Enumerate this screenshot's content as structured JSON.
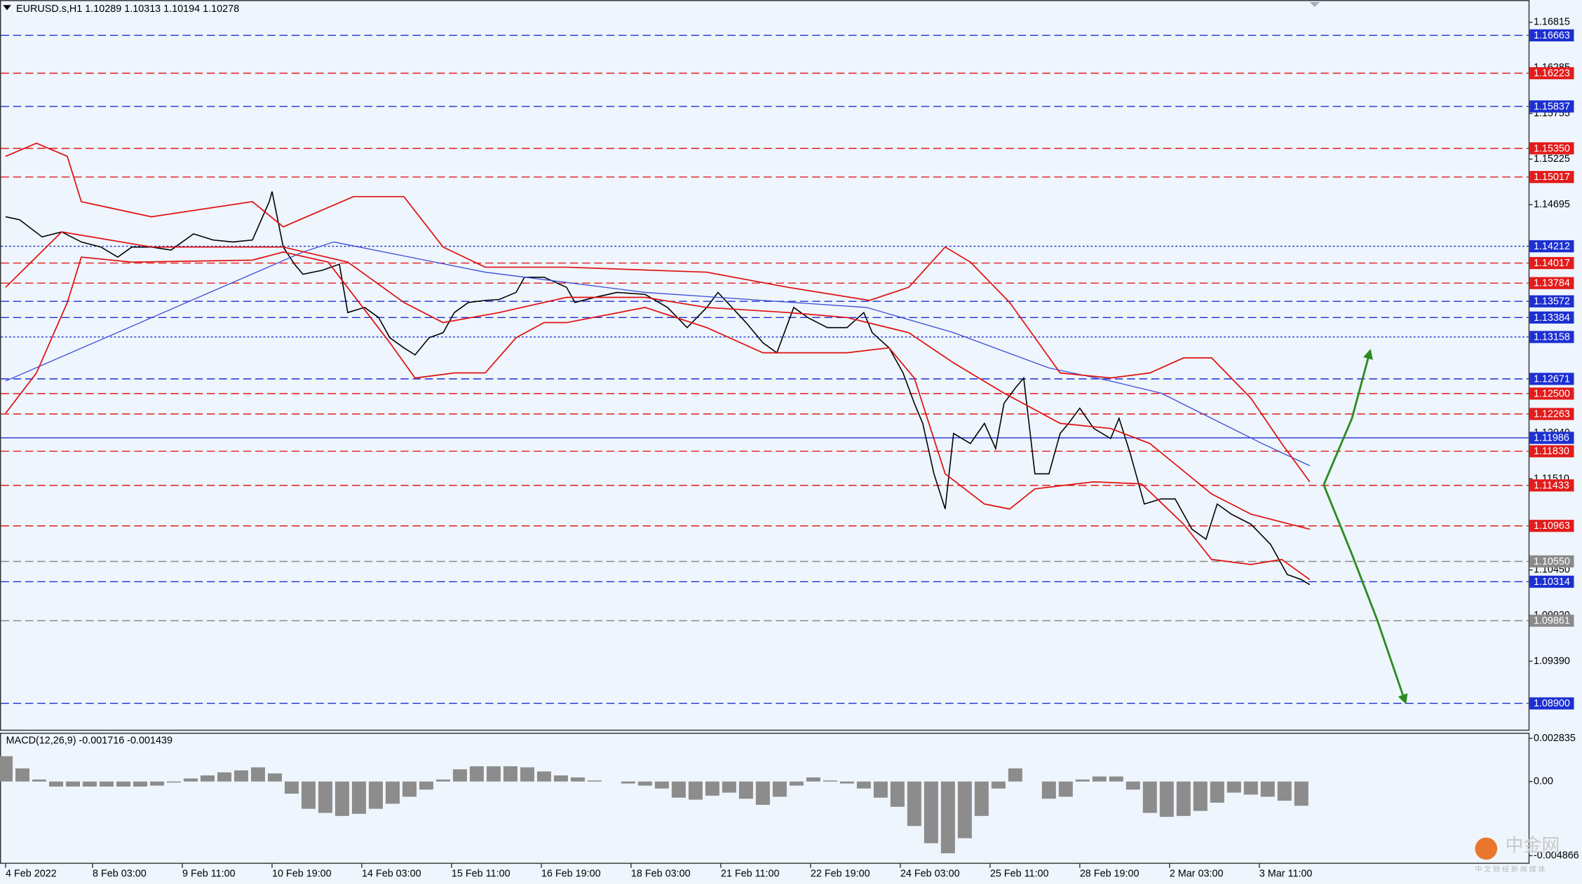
{
  "chart_data": [
    {
      "type": "line",
      "title": "EURUSD.s,H1  1.10289 1.10313 1.10194 1.10278",
      "xlim": [
        -2,
        543
      ],
      "ylim": [
        1.08594,
        1.17073
      ],
      "xticks": [
        {
          "value": 0,
          "label": "4 Feb 2022"
        },
        {
          "value": 31,
          "label": "8 Feb 03:00"
        },
        {
          "value": 63,
          "label": "9 Feb 11:00"
        },
        {
          "value": 95,
          "label": "10 Feb 19:00"
        },
        {
          "value": 127,
          "label": "14 Feb 03:00"
        },
        {
          "value": 159,
          "label": "15 Feb 11:00"
        },
        {
          "value": 191,
          "label": "16 Feb 19:00"
        },
        {
          "value": 223,
          "label": "18 Feb 03:00"
        },
        {
          "value": 255,
          "label": "21 Feb 11:00"
        },
        {
          "value": 287,
          "label": "22 Feb 19:00"
        },
        {
          "value": 319,
          "label": "24 Feb 03:00"
        },
        {
          "value": 351,
          "label": "25 Feb 11:00"
        },
        {
          "value": 383,
          "label": "28 Feb 19:00"
        },
        {
          "value": 415,
          "label": "2 Mar 03:00"
        },
        {
          "value": 447,
          "label": "3 Mar 11:00"
        }
      ],
      "yticks": [
        1.16815,
        1.16285,
        1.15755,
        1.15225,
        1.14695,
        {
          "value": 1.1204,
          "label": "1.12040"
        },
        {
          "value": 1.1151,
          "label": "1.11510"
        },
        {
          "value": 1.1045,
          "label": "1.10450"
        },
        {
          "value": 1.0992,
          "label": "1.09920"
        },
        {
          "value": 1.0939,
          "label": "1.09390"
        }
      ],
      "series": [
        {
          "color": "#000000",
          "width": 1.1,
          "x": [
            0,
            5,
            13,
            20,
            27,
            34,
            40,
            45,
            52,
            59,
            67,
            74,
            81,
            88,
            94,
            95,
            99,
            103,
            106,
            113,
            119,
            122,
            128,
            133,
            137,
            142,
            146,
            151,
            156,
            160,
            165,
            171,
            176,
            182,
            185,
            192,
            200,
            203,
            210,
            218,
            228,
            236,
            243,
            250,
            254,
            259,
            264,
            270,
            275,
            281,
            286,
            293,
            300,
            306,
            309,
            315,
            320,
            324,
            327,
            331,
            335,
            338,
            344,
            349,
            353,
            356,
            360,
            363,
            367,
            372,
            376,
            379,
            383,
            388,
            394,
            397,
            401,
            406,
            412,
            417,
            423,
            428,
            432,
            437,
            444,
            451,
            457,
            462,
            465
          ],
          "values": [
            1.14555,
            1.1452,
            1.14321,
            1.14379,
            1.14262,
            1.14203,
            1.14086,
            1.14203,
            1.14203,
            1.14168,
            1.14356,
            1.14285,
            1.14262,
            1.14285,
            1.1473,
            1.14848,
            1.14203,
            1.14004,
            1.13887,
            1.13934,
            1.14004,
            1.13442,
            1.13501,
            1.13384,
            1.13149,
            1.13032,
            1.1295,
            1.13149,
            1.13208,
            1.13442,
            1.13559,
            1.13583,
            1.13594,
            1.13676,
            1.13852,
            1.13852,
            1.13735,
            1.13559,
            1.13618,
            1.13676,
            1.13653,
            1.13501,
            1.13267,
            1.13501,
            1.13676,
            1.13501,
            1.13325,
            1.13091,
            1.12974,
            1.13501,
            1.13384,
            1.13267,
            1.13267,
            1.13442,
            1.13208,
            1.13032,
            1.1274,
            1.12388,
            1.12154,
            1.11568,
            1.11159,
            1.12037,
            1.1192,
            1.12154,
            1.11861,
            1.12388,
            1.12564,
            1.12681,
            1.11568,
            1.11568,
            1.12037,
            1.12154,
            1.1233,
            1.12095,
            1.11978,
            1.12213,
            1.11803,
            1.11217,
            1.11276,
            1.11276,
            1.10924,
            1.10807,
            1.11217,
            1.111,
            1.10983,
            1.10749,
            1.10397,
            1.10339,
            1.1028
          ]
        },
        {
          "color": "#3a4bd8",
          "width": 0.9,
          "x": [
            0,
            106,
            117,
            171,
            228,
            307,
            338,
            372,
            394,
            412,
            448,
            465
          ],
          "values": [
            1.12646,
            1.14145,
            1.14262,
            1.13911,
            1.13676,
            1.13501,
            1.13208,
            1.12798,
            1.12646,
            1.12505,
            1.1192,
            1.11662
          ]
        },
        {
          "color": "#e01010",
          "width": 1.2,
          "x": [
            0,
            11,
            22,
            27,
            52,
            88,
            99,
            124,
            142,
            156,
            171,
            200,
            250,
            279,
            308,
            322,
            335,
            344,
            358,
            376,
            394,
            408,
            420,
            430,
            444,
            455,
            465
          ],
          "values": [
            1.15257,
            1.1541,
            1.15257,
            1.1473,
            1.14555,
            1.1473,
            1.14438,
            1.14789,
            1.14789,
            1.14203,
            1.13969,
            1.13969,
            1.13911,
            1.13735,
            1.13583,
            1.13735,
            1.14203,
            1.14028,
            1.13559,
            1.1274,
            1.12681,
            1.1274,
            1.12915,
            1.12915,
            1.12447,
            1.1192,
            1.11475
          ]
        },
        {
          "color": "#e01010",
          "width": 1.2,
          "x": [
            0,
            20,
            52,
            99,
            122,
            142,
            156,
            176,
            200,
            228,
            250,
            279,
            300,
            322,
            338,
            356,
            376,
            394,
            408,
            430,
            444,
            465
          ],
          "values": [
            1.13735,
            1.14379,
            1.14203,
            1.14203,
            1.14028,
            1.13559,
            1.13325,
            1.13442,
            1.13618,
            1.13618,
            1.13501,
            1.13442,
            1.13384,
            1.13208,
            1.12857,
            1.12505,
            1.12154,
            1.12095,
            1.1192,
            1.11334,
            1.111,
            1.10924
          ]
        },
        {
          "color": "#e01010",
          "width": 1.2,
          "x": [
            0,
            11,
            22,
            27,
            45,
            88,
            99,
            115,
            137,
            146,
            160,
            171,
            182,
            192,
            200,
            228,
            250,
            270,
            300,
            315,
            324,
            335,
            349,
            358,
            367,
            388,
            405,
            420,
            430,
            444,
            455,
            465
          ],
          "values": [
            1.12271,
            1.1274,
            1.13559,
            1.14086,
            1.14028,
            1.14051,
            1.14145,
            1.14028,
            1.13091,
            1.12681,
            1.1274,
            1.1274,
            1.13149,
            1.13325,
            1.13325,
            1.13501,
            1.13267,
            1.12974,
            1.12974,
            1.13032,
            1.12681,
            1.11568,
            1.11217,
            1.11159,
            1.11393,
            1.11475,
            1.11451,
            1.10983,
            1.10573,
            1.10514,
            1.10573,
            1.10339
          ]
        }
      ],
      "levels": [
        {
          "value": 1.16663,
          "color": "#1c2fd1",
          "style": "dashed"
        },
        {
          "value": 1.16223,
          "color": "#e21b1b",
          "style": "dashed"
        },
        {
          "value": 1.15837,
          "color": "#1c2fd1",
          "style": "dashed"
        },
        {
          "value": 1.1535,
          "label": "1.15350",
          "color": "#e21b1b",
          "style": "dashed"
        },
        {
          "value": 1.15017,
          "color": "#e21b1b",
          "style": "dashed"
        },
        {
          "value": 1.14212,
          "color": "#1c2fd1",
          "style": "dotted"
        },
        {
          "value": 1.14017,
          "color": "#e21b1b",
          "style": "dashed"
        },
        {
          "value": 1.13784,
          "color": "#e21b1b",
          "style": "dashed"
        },
        {
          "value": 1.13572,
          "color": "#1c2fd1",
          "style": "dashed"
        },
        {
          "value": 1.13384,
          "color": "#1c2fd1",
          "style": "dashed"
        },
        {
          "value": 1.13158,
          "color": "#1c2fd1",
          "style": "dotted"
        },
        {
          "value": 1.12671,
          "color": "#1c2fd1",
          "style": "dashed"
        },
        {
          "value": 1.125,
          "label": "1.12500",
          "color": "#e21b1b",
          "style": "dashed"
        },
        {
          "value": 1.12263,
          "color": "#e21b1b",
          "style": "dashed"
        },
        {
          "value": 1.11986,
          "color": "#1c2fd1",
          "style": "solid"
        },
        {
          "value": 1.1183,
          "label": "1.11830",
          "color": "#e21b1b",
          "style": "dashed"
        },
        {
          "value": 1.11433,
          "color": "#e21b1b",
          "style": "dashed"
        },
        {
          "value": 1.10963,
          "color": "#e21b1b",
          "style": "dashed"
        },
        {
          "value": 1.1055,
          "label": "1.10550",
          "color": "#8a8a8a",
          "style": "dashed"
        },
        {
          "value": 1.10314,
          "color": "#1c2fd1",
          "style": "dashed"
        },
        {
          "value": 1.09861,
          "color": "#8a8a8a",
          "style": "dashed"
        },
        {
          "value": 1.089,
          "label": "1.08900",
          "color": "#1c2fd1",
          "style": "dashed"
        }
      ]
    },
    {
      "type": "bar",
      "title": "MACD(12,26,9) -0.001716 -0.001439",
      "color": "#8c8c8c",
      "ylim": [
        -0.0054,
        0.0032
      ],
      "yticks": [
        0.002835,
        {
          "value": 0,
          "label": "0.00"
        },
        -0.004866
      ],
      "x": [
        0,
        6,
        12,
        18,
        24,
        30,
        36,
        42,
        48,
        54,
        60,
        66,
        72,
        78,
        84,
        90,
        96,
        102,
        108,
        114,
        120,
        126,
        132,
        138,
        144,
        150,
        156,
        162,
        168,
        174,
        180,
        186,
        192,
        198,
        204,
        210,
        216,
        222,
        228,
        234,
        240,
        246,
        252,
        258,
        264,
        270,
        276,
        282,
        288,
        294,
        300,
        306,
        312,
        318,
        324,
        330,
        336,
        342,
        348,
        354,
        360,
        366,
        372,
        378,
        384,
        390,
        396,
        402,
        408,
        414,
        420,
        426,
        432,
        438,
        444,
        450,
        456,
        462
      ],
      "values": [
        0.00166,
        0.00086,
        0.00013,
        -0.00033,
        -0.00033,
        -0.00033,
        -0.00033,
        -0.00033,
        -0.00033,
        -0.00027,
        -7e-05,
        0.0002,
        0.0004,
        0.0006,
        0.00073,
        0.00093,
        0.00053,
        -0.0008,
        -0.00179,
        -0.00206,
        -0.00226,
        -0.00212,
        -0.00179,
        -0.00146,
        -0.001,
        -0.00053,
        0.00013,
        0.0008,
        0.001,
        0.001,
        0.001,
        0.00093,
        0.00066,
        0.0004,
        0.00027,
        7e-05,
        0,
        -0.00013,
        -0.00027,
        -0.00046,
        -0.00106,
        -0.00119,
        -0.00093,
        -0.00073,
        -0.00113,
        -0.00153,
        -0.001,
        -0.00027,
        0.00027,
        7e-05,
        -0.00013,
        -0.00046,
        -0.00106,
        -0.00166,
        -0.00292,
        -0.00405,
        -0.00471,
        -0.00372,
        -0.00226,
        -0.00046,
        0.00086,
        0,
        -0.00113,
        -0.001,
        0.00013,
        0.00033,
        0.00033,
        -0.00053,
        -0.00206,
        -0.00232,
        -0.00226,
        -0.00193,
        -0.00139,
        -0.00073,
        -0.00086,
        -0.001,
        -0.00126,
        -0.00159
      ]
    }
  ],
  "watermark": {
    "name": "中金网",
    "tagline": "中 文 财 经 新 闻 媒 体"
  }
}
